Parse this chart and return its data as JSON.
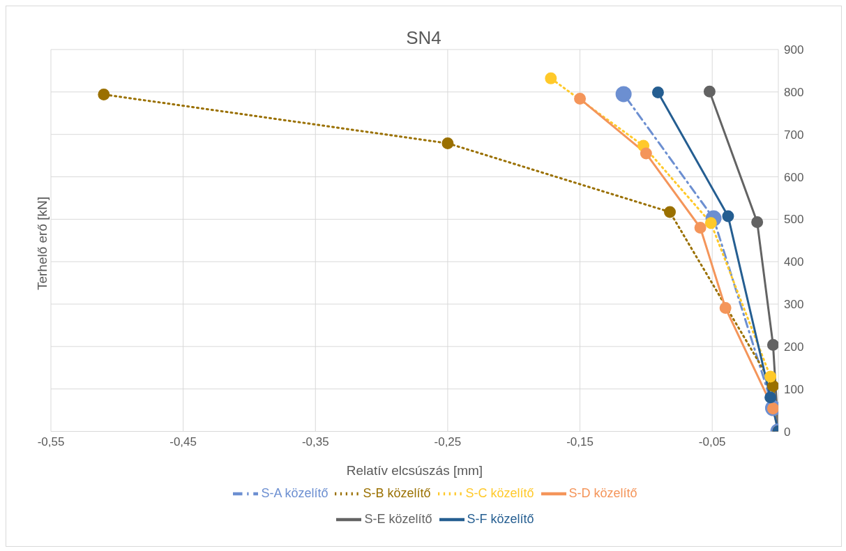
{
  "chart_data": {
    "type": "line",
    "title": "SN4",
    "xlabel": "Relatív elcsúszás [mm]",
    "ylabel": "Terhelő erő [kN]",
    "xlim": [
      -0.55,
      0
    ],
    "xticks": [
      {
        "value": -0.55,
        "label": "-0,55"
      },
      {
        "value": -0.45,
        "label": "-0,45"
      },
      {
        "value": -0.35,
        "label": "-0,35"
      },
      {
        "value": -0.25,
        "label": "-0,25"
      },
      {
        "value": -0.15,
        "label": "-0,15"
      },
      {
        "value": -0.05,
        "label": "-0,05"
      }
    ],
    "ylim": [
      0,
      900
    ],
    "yticks": [
      0,
      100,
      200,
      300,
      400,
      500,
      600,
      700,
      800,
      900
    ],
    "grid": true,
    "legend": "bottom",
    "marker": "circle",
    "series": [
      {
        "name": "S-A közelítő",
        "color": "#6c8fd1",
        "line_style": "dashed",
        "x": [
          0,
          -0.004,
          -0.049,
          -0.117
        ],
        "values": [
          0,
          55,
          502,
          795
        ]
      },
      {
        "name": "S-B közelítő",
        "color": "#9a7000",
        "line_style": "dotted",
        "x": [
          0,
          -0.004,
          -0.082,
          -0.25,
          -0.51
        ],
        "values": [
          0,
          107,
          517,
          679,
          794
        ]
      },
      {
        "name": "S-C közelítő",
        "color": "#ffc92a",
        "line_style": "dotted",
        "x": [
          0,
          -0.006,
          -0.051,
          -0.102,
          -0.172
        ],
        "values": [
          0,
          129,
          491,
          673,
          832
        ]
      },
      {
        "name": "S-D közelítő",
        "color": "#f4955a",
        "line_style": "solid",
        "x": [
          0,
          -0.004,
          -0.04,
          -0.059,
          -0.1,
          -0.15
        ],
        "values": [
          0,
          54,
          291,
          480,
          655,
          784
        ]
      },
      {
        "name": "S-E közelítő",
        "color": "#636363",
        "line_style": "solid",
        "x": [
          0,
          -0.004,
          -0.016,
          -0.052
        ],
        "values": [
          0,
          204,
          493,
          801
        ]
      },
      {
        "name": "S-F közelítő",
        "color": "#255e91",
        "line_style": "solid",
        "x": [
          0,
          -0.006,
          -0.038,
          -0.091
        ],
        "values": [
          0,
          80,
          507,
          799
        ]
      }
    ]
  }
}
